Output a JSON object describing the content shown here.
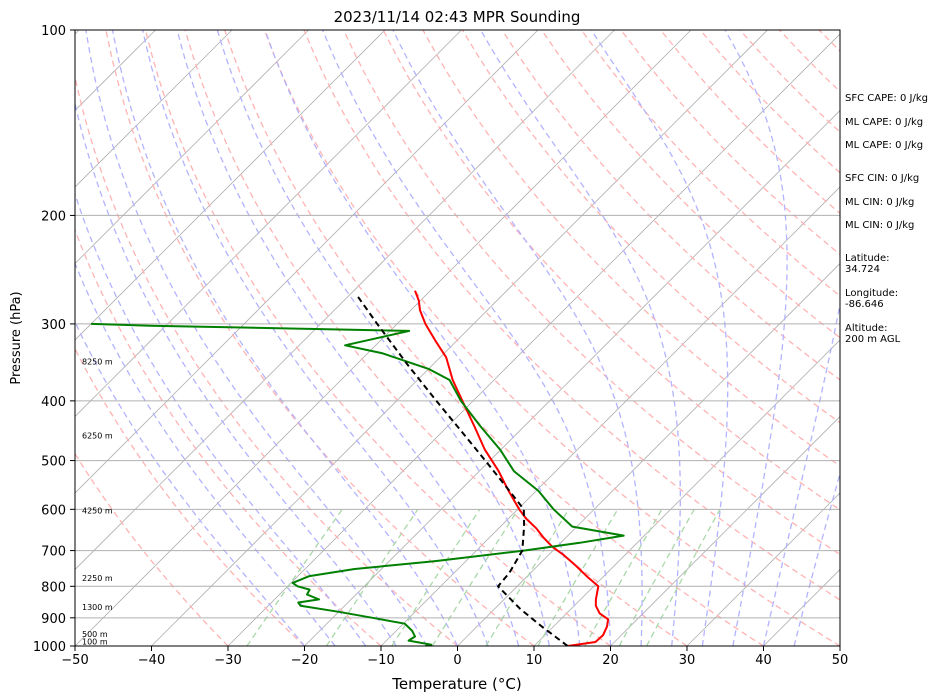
{
  "chart_data": {
    "type": "line",
    "title": "2023/11/14 02:43 MPR Sounding",
    "xlabel": "Temperature (°C)",
    "ylabel": "Pressure (hPa)",
    "xlim": [
      -50,
      50
    ],
    "ylim": [
      1000,
      100
    ],
    "yscale": "log",
    "skew": true,
    "grid": true,
    "x_ticks": [
      "−50",
      "−40",
      "−30",
      "−20",
      "−10",
      "0",
      "10",
      "20",
      "30",
      "40",
      "50"
    ],
    "y_ticks": [
      "100",
      "200",
      "300",
      "400",
      "500",
      "600",
      "700",
      "800",
      "900",
      "1000"
    ],
    "height_labels": [
      {
        "p": 983,
        "label": "100 m"
      },
      {
        "p": 957,
        "label": "500 m"
      },
      {
        "p": 865,
        "label": "1300 m"
      },
      {
        "p": 775,
        "label": "2250 m"
      },
      {
        "p": 603,
        "label": "4250 m"
      },
      {
        "p": 455,
        "label": "6250 m"
      },
      {
        "p": 345,
        "label": "8250 m"
      }
    ],
    "series": [
      {
        "role": "temperature",
        "color": "#ff0000",
        "data": [
          [
            1000,
            14.4
          ],
          [
            985,
            17.5
          ],
          [
            960,
            17.6
          ],
          [
            930,
            17.0
          ],
          [
            905,
            16.2
          ],
          [
            885,
            14.3
          ],
          [
            860,
            12.8
          ],
          [
            840,
            12.0
          ],
          [
            800,
            10.6
          ],
          [
            775,
            8.2
          ],
          [
            740,
            4.9
          ],
          [
            710,
            1.8
          ],
          [
            690,
            -0.6
          ],
          [
            665,
            -3.1
          ],
          [
            645,
            -5.0
          ],
          [
            620,
            -7.8
          ],
          [
            600,
            -9.8
          ],
          [
            560,
            -13.6
          ],
          [
            520,
            -17.5
          ],
          [
            480,
            -22.1
          ],
          [
            440,
            -26.5
          ],
          [
            400,
            -31.4
          ],
          [
            370,
            -35.4
          ],
          [
            340,
            -39.2
          ],
          [
            320,
            -42.7
          ],
          [
            300,
            -46.3
          ],
          [
            285,
            -48.8
          ],
          [
            275,
            -50.2
          ],
          [
            265,
            -52.0
          ]
        ]
      },
      {
        "role": "dewpoint",
        "color": "#008000",
        "data": [
          [
            1000,
            -4.2
          ],
          [
            995,
            -3.6
          ],
          [
            980,
            -7.1
          ],
          [
            965,
            -6.8
          ],
          [
            945,
            -7.9
          ],
          [
            920,
            -9.8
          ],
          [
            905,
            -13.5
          ],
          [
            880,
            -20.0
          ],
          [
            860,
            -25.8
          ],
          [
            850,
            -26.5
          ],
          [
            840,
            -24.2
          ],
          [
            825,
            -26.4
          ],
          [
            810,
            -26.7
          ],
          [
            800,
            -28.7
          ],
          [
            790,
            -29.8
          ],
          [
            770,
            -28.5
          ],
          [
            750,
            -23.5
          ],
          [
            728,
            -14.0
          ],
          [
            700,
            -3.8
          ],
          [
            680,
            2.5
          ],
          [
            662,
            7.3
          ],
          [
            640,
            -0.6
          ],
          [
            600,
            -5.3
          ],
          [
            560,
            -9.7
          ],
          [
            520,
            -15.5
          ],
          [
            480,
            -20.1
          ],
          [
            440,
            -25.7
          ],
          [
            400,
            -31.6
          ],
          [
            370,
            -35.8
          ],
          [
            355,
            -40.0
          ],
          [
            335,
            -48.0
          ],
          [
            325,
            -54.0
          ],
          [
            308,
            -47.5
          ],
          [
            302,
            -82.0
          ],
          [
            300,
            -90.0
          ]
        ]
      },
      {
        "role": "parcel",
        "color": "#000000",
        "dashed": true,
        "data": [
          [
            1000,
            14.4
          ],
          [
            930,
            8.5
          ],
          [
            870,
            3.3
          ],
          [
            800,
            -2.5
          ],
          [
            760,
            -2.8
          ],
          [
            700,
            -4.0
          ],
          [
            640,
            -6.9
          ],
          [
            600,
            -9.2
          ],
          [
            550,
            -14.6
          ],
          [
            500,
            -20.6
          ],
          [
            450,
            -27.3
          ],
          [
            400,
            -34.8
          ],
          [
            350,
            -43.2
          ],
          [
            300,
            -52.6
          ],
          [
            270,
            -58.9
          ]
        ]
      }
    ]
  },
  "side_panel": {
    "sfc_cape": "SFC CAPE: 0 J/kg",
    "ml_cape_1": "ML CAPE: 0 J/kg",
    "ml_cape_2": "ML CAPE: 0 J/kg",
    "sfc_cin": "SFC CIN: 0 J/kg",
    "ml_cin_1": "ML CIN: 0 J/kg",
    "ml_cin_2": "ML CIN: 0 J/kg",
    "latitude_label": "Latitude:",
    "latitude_value": "34.724",
    "longitude_label": "Longitude:",
    "longitude_value": "-86.646",
    "altitude_label": "Altitude:",
    "altitude_value": "200 m AGL"
  },
  "colors": {
    "isotherm": "#b0b0b0",
    "dry_adiabat": "#ffb3b3",
    "moist_adiabat": "#b3b3ff",
    "mixing_ratio": "#a8d8a8",
    "axis": "#000000"
  }
}
